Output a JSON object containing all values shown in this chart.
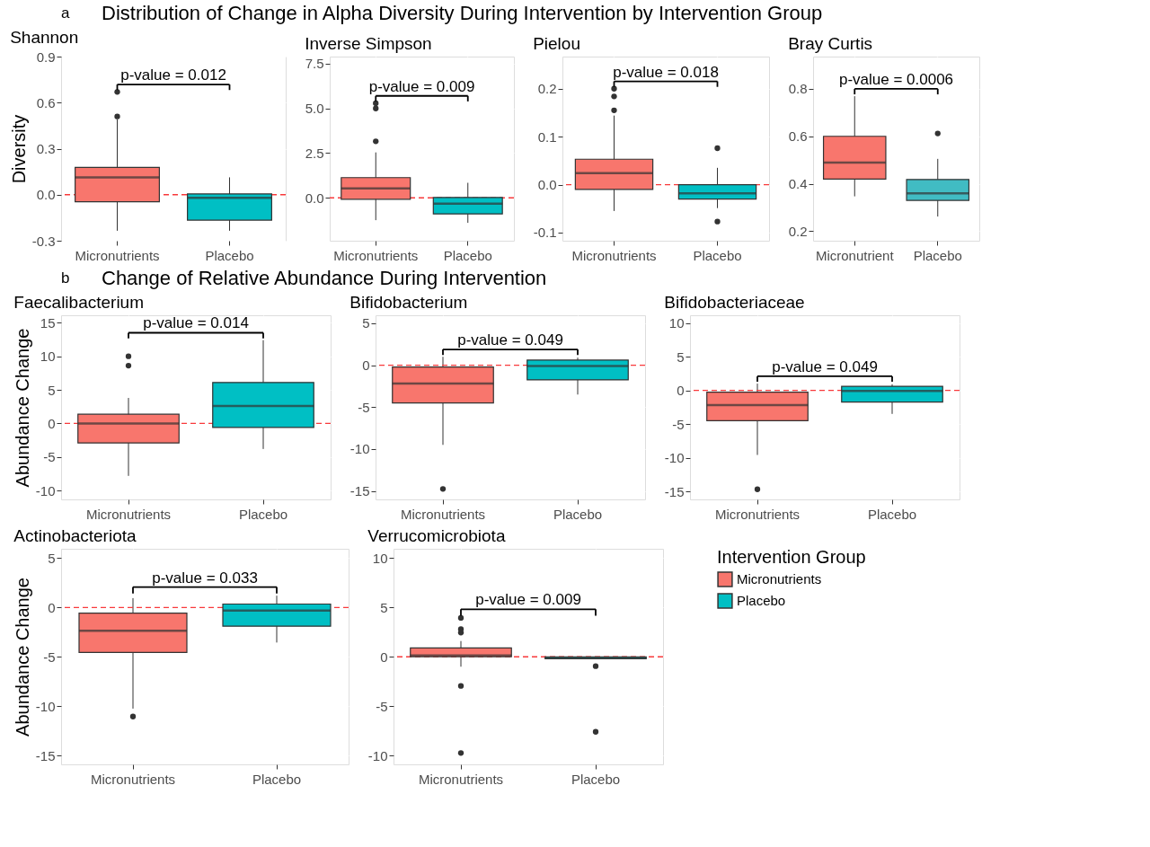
{
  "chart_data": [
    {
      "type": "box",
      "title": "Distribution of Change in Alpha Diversity During Intervention by Intervention Group",
      "subtitle": "Shannon",
      "ylabel": "Diversity",
      "categories": [
        "Micronutrients",
        "Placebo"
      ],
      "colors": [
        "#f8766d",
        "#00bfc4"
      ],
      "ylim": [
        -0.3,
        0.9
      ],
      "yticks": [
        {
          "value": -0.3,
          "label": "-0.3"
        },
        {
          "value": 0,
          "label": "0.0"
        },
        {
          "value": 0.3,
          "label": "0.3"
        },
        {
          "value": 0.6,
          "label": "0.6"
        },
        {
          "value": 0.9,
          "label": "0.9"
        }
      ],
      "grid": true,
      "boxes": [
        {
          "low": -0.235,
          "q1": -0.046,
          "median": 0.113,
          "q3": 0.178,
          "high": 0.49,
          "outliers": [
            0.51,
            0.67
          ]
        },
        {
          "low": -0.235,
          "q1": -0.166,
          "median": -0.02,
          "q3": 0.005,
          "high": 0.113
        }
      ],
      "ref_lines": [
        {
          "axis": "y",
          "value": 0,
          "color": "#f8393b",
          "line_style": "dashed"
        }
      ],
      "annotations": [
        "a",
        "p-value = 0.012"
      ]
    },
    {
      "type": "box",
      "subtitle": "Inverse Simpson",
      "categories": [
        "Micronutrients",
        "Placebo"
      ],
      "colors": [
        "#f8766d",
        "#00bfc4"
      ],
      "ylim": [
        -2.4,
        7.9
      ],
      "yticks": [
        {
          "value": 0,
          "label": "0.0"
        },
        {
          "value": 2.5,
          "label": "2.5"
        },
        {
          "value": 5,
          "label": "5.0"
        },
        {
          "value": 7.5,
          "label": "7.5"
        }
      ],
      "grid": true,
      "boxes": [
        {
          "low": -1.25,
          "q1": -0.08,
          "median": 0.53,
          "q3": 1.13,
          "high": 2.54,
          "outliers": [
            3.16,
            5.0,
            5.29
          ]
        },
        {
          "low": -1.4,
          "q1": -0.9,
          "median": -0.33,
          "q3": 0.02,
          "high": 0.84
        }
      ],
      "ref_lines": [
        {
          "axis": "y",
          "value": 0,
          "color": "#f8393b",
          "line_style": "dashed"
        }
      ],
      "annotations": [
        "p-value = 0.009"
      ]
    },
    {
      "type": "box",
      "subtitle": "Pielou",
      "categories": [
        "Micronutrients",
        "Placebo"
      ],
      "colors": [
        "#f8766d",
        "#00bfc4"
      ],
      "ylim": [
        -0.117,
        0.267
      ],
      "yticks": [
        {
          "value": -0.1,
          "label": "-0.1"
        },
        {
          "value": 0,
          "label": "0.0"
        },
        {
          "value": 0.1,
          "label": "0.1"
        },
        {
          "value": 0.2,
          "label": "0.2"
        }
      ],
      "grid": true,
      "boxes": [
        {
          "low": -0.055,
          "q1": -0.01,
          "median": 0.024,
          "q3": 0.053,
          "high": 0.144,
          "outliers": [
            0.155,
            0.184,
            0.2
          ]
        },
        {
          "low": -0.049,
          "q1": -0.03,
          "median": -0.018,
          "q3": 0.0,
          "high": 0.035,
          "outliers": [
            0.076,
            -0.077
          ]
        }
      ],
      "ref_lines": [
        {
          "axis": "y",
          "value": 0,
          "color": "#f8393b",
          "line_style": "dashed"
        }
      ],
      "annotations": [
        "p-value = 0.018"
      ]
    },
    {
      "type": "box",
      "subtitle": "Bray Curtis",
      "categories": [
        "Micronutrient",
        "Placebo"
      ],
      "colors": [
        "#f8766d",
        "#41bcc3"
      ],
      "ylim": [
        0.16,
        0.936
      ],
      "yticks": [
        {
          "value": 0.2,
          "label": "0.2"
        },
        {
          "value": 0.4,
          "label": "0.4"
        },
        {
          "value": 0.6,
          "label": "0.6"
        },
        {
          "value": 0.8,
          "label": "0.8"
        }
      ],
      "grid": true,
      "boxes": [
        {
          "low": 0.347,
          "q1": 0.42,
          "median": 0.489,
          "q3": 0.6,
          "high": 0.769
        },
        {
          "low": 0.262,
          "q1": 0.33,
          "median": 0.36,
          "q3": 0.418,
          "high": 0.505,
          "outliers": [
            0.612
          ]
        }
      ],
      "annotations": [
        "p-value = 0.0006"
      ]
    },
    {
      "type": "box",
      "title": "Change of Relative Abundance During Intervention",
      "subtitle": "Faecalibacterium",
      "ylabel": "Abundance Change",
      "categories": [
        "Micronutrients",
        "Placebo"
      ],
      "colors": [
        "#f8766d",
        "#00bfc4"
      ],
      "ylim": [
        -11.3,
        16.1
      ],
      "yticks": [
        -10,
        -5,
        0,
        5,
        10,
        15
      ],
      "grid": true,
      "boxes": [
        {
          "low": -7.8,
          "q1": -2.9,
          "median": 0.0,
          "q3": 1.37,
          "high": 3.8,
          "outliers": [
            8.6,
            10
          ]
        },
        {
          "low": -3.8,
          "q1": -0.6,
          "median": 2.6,
          "q3": 6.1,
          "high": 12.4
        }
      ],
      "ref_lines": [
        {
          "axis": "y",
          "value": 0,
          "color": "#f8393b",
          "line_style": "dashed"
        }
      ],
      "annotations": [
        "b",
        "p-value = 0.014"
      ]
    },
    {
      "type": "box",
      "subtitle": "Bifidobacterium",
      "categories": [
        "Micronutrients",
        "Placebo"
      ],
      "colors": [
        "#f8766d",
        "#00bfc4"
      ],
      "ylim": [
        -16,
        5.95
      ],
      "yticks": [
        -15,
        -10,
        -5,
        0,
        5
      ],
      "grid": true,
      "boxes": [
        {
          "low": -9.5,
          "q1": -4.5,
          "median": -2.2,
          "q3": -0.22,
          "high": 1.0,
          "outliers": [
            -14.75
          ]
        },
        {
          "low": -3.5,
          "q1": -1.75,
          "median": -0.1,
          "q3": 0.6,
          "high": 0.9
        }
      ],
      "ref_lines": [
        {
          "axis": "y",
          "value": 0,
          "color": "#f8393b",
          "line_style": "dashed"
        }
      ],
      "annotations": [
        "p-value = 0.049"
      ]
    },
    {
      "type": "box",
      "subtitle": "Bifidobacteriaceae",
      "categories": [
        "Micronutrients",
        "Placebo"
      ],
      "colors": [
        "#f8766d",
        "#00bfc4"
      ],
      "ylim": [
        -16.2,
        11.15
      ],
      "yticks": [
        -15,
        -10,
        -5,
        0,
        5,
        10
      ],
      "grid": true,
      "boxes": [
        {
          "low": -9.6,
          "q1": -4.5,
          "median": -2.2,
          "q3": -0.27,
          "high": 1.0,
          "outliers": [
            -14.7
          ]
        },
        {
          "low": -3.5,
          "q1": -1.75,
          "median": -0.1,
          "q3": 0.6,
          "high": 0.9
        }
      ],
      "ref_lines": [
        {
          "axis": "y",
          "value": 0,
          "color": "#f8393b",
          "line_style": "dashed"
        }
      ],
      "annotations": [
        "p-value = 0.049"
      ]
    },
    {
      "type": "box",
      "subtitle": "Actinobacteriota",
      "ylabel": "Abundance Change",
      "categories": [
        "Micronutrients",
        "Placebo"
      ],
      "colors": [
        "#f8766d",
        "#00bfc4"
      ],
      "ylim": [
        -15.9,
        5.95
      ],
      "yticks": [
        -15,
        -10,
        -5,
        0,
        5
      ],
      "grid": true,
      "boxes": [
        {
          "low": -10.25,
          "q1": -4.55,
          "median": -2.35,
          "q3": -0.57,
          "high": 0.95,
          "outliers": [
            -11.05
          ]
        },
        {
          "low": -3.55,
          "q1": -1.9,
          "median": -0.3,
          "q3": 0.35,
          "high": 1.2
        }
      ],
      "ref_lines": [
        {
          "axis": "y",
          "value": 0,
          "color": "#f8393b",
          "line_style": "dashed"
        }
      ],
      "annotations": [
        "p-value = 0.033"
      ]
    },
    {
      "type": "box",
      "subtitle": "Verrucomicrobiota",
      "legend_title": "Intervention Group",
      "legend": "right",
      "categories": [
        "Micronutrients",
        "Placebo"
      ],
      "ylim": [
        -10.9,
        10.95
      ],
      "yticks": [
        -10,
        -5,
        0,
        5,
        10
      ],
      "grid": true,
      "series": [
        {
          "name": "Micronutrients",
          "color": "#f8766d",
          "boxes": [
            {
              "low": -1.0,
              "q1": 0.0,
              "median": 0.15,
              "q3": 0.9,
              "high": 1.6,
              "outliers": [
                3.95,
                2.8,
                2.45,
                -2.95,
                -9.75
              ]
            },
            null
          ]
        },
        {
          "name": "Placebo",
          "color": "#00bfc4",
          "boxes": [
            null,
            {
              "low": -0.2,
              "q1": -0.2,
              "median": -0.1,
              "q3": 0.0,
              "high": 0.0,
              "outliers": [
                -0.95,
                -7.6
              ]
            }
          ]
        }
      ],
      "ref_lines": [
        {
          "axis": "y",
          "value": 0,
          "color": "#f8393b",
          "line_style": "dashed"
        }
      ],
      "annotations": [
        "p-value = 0.009"
      ]
    }
  ]
}
